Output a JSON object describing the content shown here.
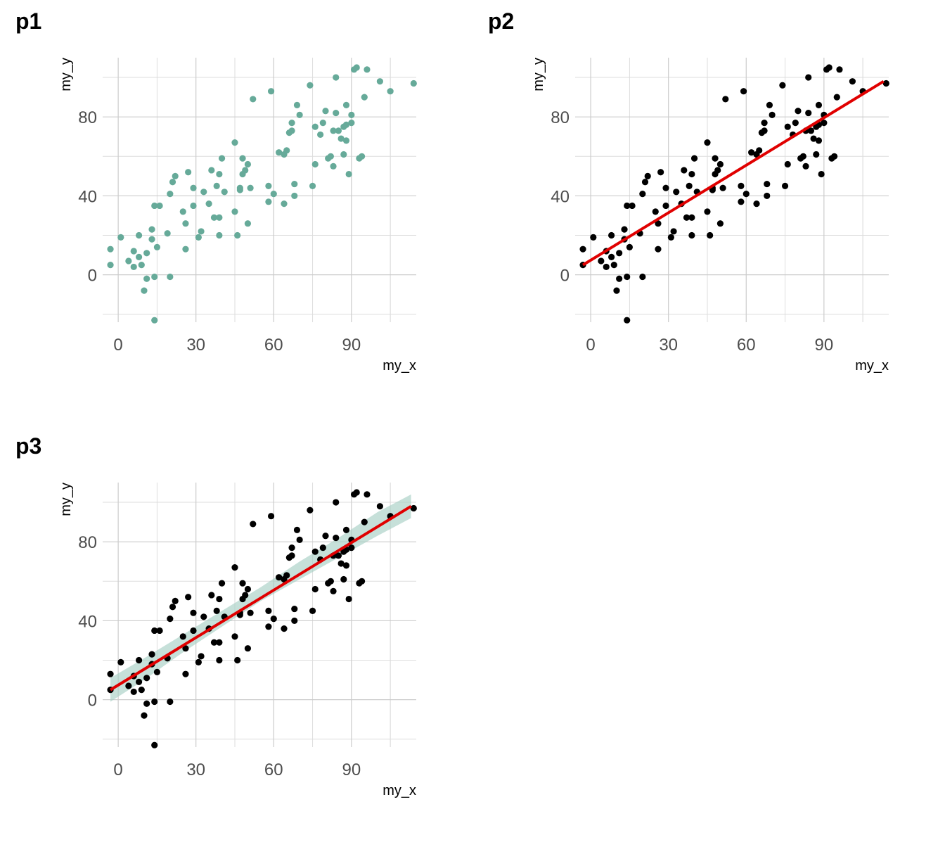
{
  "panels": [
    {
      "title": "p1",
      "xlabel": "my_x",
      "ylabel": "my_y",
      "point_color": "#66AA99",
      "smooth": false,
      "ribbon": false
    },
    {
      "title": "p2",
      "xlabel": "my_x",
      "ylabel": "my_y",
      "point_color": "#000000",
      "smooth": true,
      "line_color": "#E00000",
      "ribbon": false
    },
    {
      "title": "p3",
      "xlabel": "my_x",
      "ylabel": "my_y",
      "point_color": "#000000",
      "smooth": true,
      "line_color": "#E00000",
      "ribbon": true,
      "ribbon_color": "#A8CFC4"
    }
  ],
  "chart_data": {
    "type": "scatter",
    "xlim": [
      -6,
      115
    ],
    "ylim": [
      -24,
      110
    ],
    "x_ticks": [
      0,
      30,
      60,
      90
    ],
    "y_ticks": [
      0,
      40,
      80
    ],
    "grid": true,
    "fit_line": {
      "x": [
        -3,
        113
      ],
      "y": [
        5,
        98
      ]
    },
    "confidence_band": {
      "x": [
        -3,
        10,
        25,
        40,
        55,
        70,
        85,
        100,
        113
      ],
      "lower": [
        -1,
        10,
        24,
        37,
        50,
        61,
        72,
        83,
        92
      ],
      "upper": [
        11,
        21,
        33,
        45,
        57,
        70,
        82,
        95,
        104
      ]
    },
    "x": [
      -3,
      -3,
      1,
      4,
      6,
      8,
      8,
      6,
      9,
      10,
      11,
      11,
      13,
      13,
      14,
      14,
      14,
      15,
      16,
      19,
      20,
      20,
      21,
      22,
      25,
      26,
      26,
      27,
      29,
      29,
      31,
      32,
      33,
      35,
      36,
      37,
      38,
      39,
      39,
      39,
      40,
      41,
      45,
      45,
      46,
      47,
      47,
      48,
      48,
      49,
      50,
      50,
      51,
      52,
      58,
      58,
      59,
      60,
      62,
      64,
      64,
      65,
      66,
      67,
      67,
      68,
      68,
      69,
      70,
      74,
      75,
      76,
      76,
      78,
      79,
      80,
      81,
      82,
      83,
      83,
      84,
      84,
      85,
      86,
      87,
      87,
      88,
      88,
      88,
      89,
      90,
      90,
      91,
      92,
      93,
      94,
      95,
      96,
      101,
      105,
      114
    ],
    "y": [
      13,
      5,
      19,
      7,
      4,
      9,
      20,
      12,
      5,
      -8,
      11,
      -2,
      23,
      18,
      35,
      -1,
      -23,
      14,
      35,
      21,
      41,
      -1,
      47,
      50,
      32,
      13,
      26,
      52,
      35,
      44,
      19,
      22,
      42,
      36,
      53,
      29,
      45,
      29,
      51,
      20,
      59,
      42,
      67,
      32,
      20,
      43,
      44,
      51,
      59,
      53,
      26,
      56,
      44,
      89,
      37,
      45,
      93,
      41,
      62,
      36,
      61,
      63,
      72,
      73,
      77,
      40,
      46,
      86,
      81,
      96,
      45,
      56,
      75,
      71,
      77,
      83,
      59,
      60,
      73,
      55,
      100,
      82,
      73,
      69,
      75,
      61,
      68,
      76,
      86,
      51,
      77,
      81,
      104,
      105,
      59,
      60,
      90,
      104,
      98,
      93,
      97
    ]
  }
}
